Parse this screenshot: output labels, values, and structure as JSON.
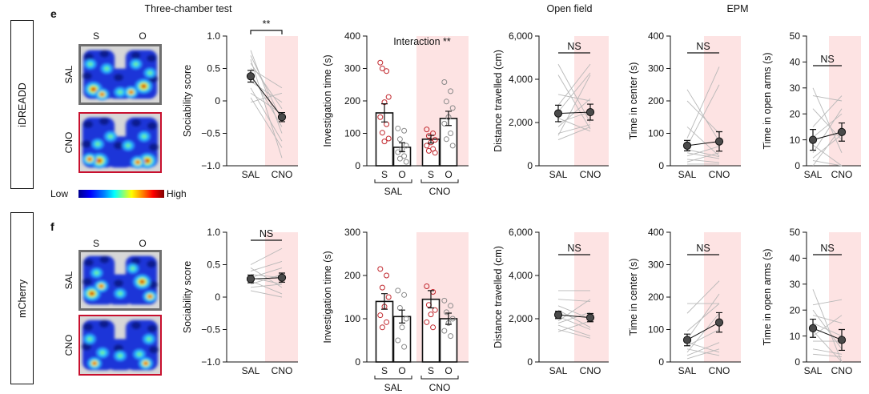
{
  "figure": {
    "section_titles": {
      "three_chamber": "Three-chamber test",
      "open_field": "Open field",
      "epm": "EPM"
    },
    "panels": {
      "e": "e",
      "f": "f"
    },
    "rows": {
      "top": "iDREADD",
      "bottom": "mCherry"
    },
    "heatmaps": {
      "top": {
        "s_label": "S",
        "o_label": "O",
        "sal_label": "SAL",
        "cno_label": "CNO"
      },
      "bottom": {
        "s_label": "S",
        "o_label": "O",
        "sal_label": "SAL",
        "cno_label": "CNO"
      }
    },
    "colorbar": {
      "low": "Low",
      "high": "High"
    }
  },
  "colors": {
    "cno_shade": "#fde3e3",
    "subject_line": "#b8b8b8",
    "mean_point": "#4a4a4a",
    "s_point": "#c1272d",
    "o_point": "#8a8a8a",
    "sal_border": "#6f6f6f",
    "cno_border": "#c8102e"
  },
  "chart_data": [
    {
      "type": "line",
      "ylabel": "Sociability score",
      "ylim": [
        -1,
        1
      ],
      "yticks": [
        -1,
        -0.5,
        0,
        0.5,
        1
      ],
      "ytick_labels": [
        "−1.0",
        "−0.5",
        "0",
        "0.5",
        "1.0"
      ],
      "categories": [
        "SAL",
        "CNO"
      ],
      "shaded_index": 1,
      "mean": [
        0.38,
        -0.25
      ],
      "sem": [
        0.09,
        0.07
      ],
      "subjects": [
        [
          0.78,
          -0.5
        ],
        [
          0.7,
          -0.3
        ],
        [
          0.64,
          -0.88
        ],
        [
          0.58,
          -0.12
        ],
        [
          0.5,
          0.2
        ],
        [
          0.42,
          -0.4
        ],
        [
          0.3,
          -0.02
        ],
        [
          0.2,
          -0.62
        ],
        [
          0.12,
          -0.2
        ],
        [
          -0.02,
          0.12
        ],
        [
          0.05,
          -0.72
        ]
      ],
      "significance": "**"
    },
    {
      "type": "bar",
      "ylabel": "Investigation time (s)",
      "ylim": [
        0,
        400
      ],
      "yticks": [
        0,
        100,
        200,
        300,
        400
      ],
      "ytick_labels": [
        "0",
        "100",
        "200",
        "300",
        "400"
      ],
      "groups": [
        "SAL",
        "CNO"
      ],
      "categories": [
        "S",
        "O",
        "S",
        "O"
      ],
      "shaded_group_index": 1,
      "values": [
        163,
        57,
        82,
        146
      ],
      "sem": [
        28,
        14,
        12,
        22
      ],
      "points": [
        [
          318,
          292,
          300,
          212,
          196,
          150,
          128,
          102,
          84,
          75
        ],
        [
          115,
          108,
          82,
          62,
          52,
          42,
          30,
          22,
          12
        ],
        [
          112,
          100,
          92,
          80,
          72,
          62,
          52,
          46,
          40
        ],
        [
          258,
          230,
          198,
          178,
          150,
          130,
          100,
          82,
          62
        ]
      ],
      "annotation": "Interaction **"
    },
    {
      "type": "line",
      "ylabel": "Distance travelled (cm)",
      "ylim": [
        0,
        6000
      ],
      "yticks": [
        0,
        2000,
        4000,
        6000
      ],
      "ytick_labels": [
        "0",
        "2,000",
        "4,000",
        "6,000"
      ],
      "categories": [
        "SAL",
        "CNO"
      ],
      "shaded_index": 1,
      "mean": [
        2420,
        2480
      ],
      "sem": [
        380,
        370
      ],
      "subjects": [
        [
          4700,
          2000
        ],
        [
          4200,
          1700
        ],
        [
          3300,
          3000
        ],
        [
          2800,
          4700
        ],
        [
          2500,
          4300
        ],
        [
          2200,
          1600
        ],
        [
          2000,
          2500
        ],
        [
          1800,
          3100
        ],
        [
          1500,
          1900
        ],
        [
          1200,
          1800
        ],
        [
          1400,
          4200
        ]
      ],
      "significance": "NS"
    },
    {
      "type": "line",
      "ylabel": "Time in center (s)",
      "ylim": [
        0,
        400
      ],
      "yticks": [
        0,
        100,
        200,
        300,
        400
      ],
      "ytick_labels": [
        "0",
        "100",
        "200",
        "300",
        "400"
      ],
      "categories": [
        "SAL",
        "CNO"
      ],
      "shaded_index": 1,
      "mean": [
        62,
        75
      ],
      "sem": [
        16,
        30
      ],
      "subjects": [
        [
          235,
          75
        ],
        [
          200,
          100
        ],
        [
          120,
          30
        ],
        [
          85,
          305
        ],
        [
          60,
          250
        ],
        [
          50,
          28
        ],
        [
          40,
          22
        ],
        [
          30,
          60
        ],
        [
          20,
          10
        ],
        [
          12,
          40
        ],
        [
          5,
          5
        ]
      ],
      "significance": "NS"
    },
    {
      "type": "line",
      "ylabel": "Time in open arms (s)",
      "ylim": [
        0,
        50
      ],
      "yticks": [
        0,
        10,
        20,
        30,
        40,
        50
      ],
      "ytick_labels": [
        "0",
        "10",
        "20",
        "30",
        "40",
        "50"
      ],
      "categories": [
        "SAL",
        "CNO"
      ],
      "shaded_index": 1,
      "mean": [
        10,
        13
      ],
      "sem": [
        4,
        3.5
      ],
      "subjects": [
        [
          30,
          5
        ],
        [
          27,
          25
        ],
        [
          22,
          10
        ],
        [
          15,
          27
        ],
        [
          11,
          20
        ],
        [
          8,
          0
        ],
        [
          5,
          22
        ],
        [
          3,
          12
        ],
        [
          2,
          0
        ],
        [
          0,
          15
        ]
      ],
      "significance": "NS"
    },
    {
      "type": "line",
      "ylabel": "Sociability score",
      "ylim": [
        -1,
        1
      ],
      "yticks": [
        -1,
        -0.5,
        0,
        0.5,
        1
      ],
      "ytick_labels": [
        "−1.0",
        "−0.5",
        "0",
        "0.5",
        "1.0"
      ],
      "categories": [
        "SAL",
        "CNO"
      ],
      "shaded_index": 1,
      "mean": [
        0.28,
        0.3
      ],
      "sem": [
        0.06,
        0.07
      ],
      "subjects": [
        [
          0.5,
          0.75
        ],
        [
          0.45,
          0.15
        ],
        [
          0.4,
          0.55
        ],
        [
          0.35,
          0.3
        ],
        [
          0.3,
          0.45
        ],
        [
          0.25,
          0.05
        ],
        [
          0.2,
          0.35
        ],
        [
          0.15,
          0.2
        ],
        [
          0.1,
          0.0
        ],
        [
          0.3,
          0.2
        ]
      ],
      "significance": "NS"
    },
    {
      "type": "bar",
      "ylabel": "Investigation time (s)",
      "ylim": [
        0,
        300
      ],
      "yticks": [
        0,
        100,
        200,
        300
      ],
      "ytick_labels": [
        "0",
        "100",
        "200",
        "300"
      ],
      "groups": [
        "SAL",
        "CNO"
      ],
      "categories": [
        "S",
        "O",
        "S",
        "O"
      ],
      "shaded_group_index": 1,
      "values": [
        140,
        105,
        145,
        100
      ],
      "sem": [
        18,
        15,
        20,
        13
      ],
      "points": [
        [
          215,
          200,
          172,
          150,
          128,
          108,
          92,
          80
        ],
        [
          165,
          155,
          125,
          100,
          80,
          50,
          35
        ],
        [
          175,
          162,
          132,
          120,
          110,
          92,
          80
        ],
        [
          142,
          130,
          115,
          100,
          90,
          72,
          60
        ]
      ]
    },
    {
      "type": "line",
      "ylabel": "Distance travelled (cm)",
      "ylim": [
        0,
        6000
      ],
      "yticks": [
        0,
        2000,
        4000,
        6000
      ],
      "ytick_labels": [
        "0",
        "2,000",
        "4,000",
        "6,000"
      ],
      "categories": [
        "SAL",
        "CNO"
      ],
      "shaded_index": 1,
      "mean": [
        2180,
        2050
      ],
      "sem": [
        170,
        190
      ],
      "subjects": [
        [
          3300,
          3300
        ],
        [
          2900,
          2800
        ],
        [
          2600,
          2000
        ],
        [
          2400,
          1600
        ],
        [
          2100,
          1500
        ],
        [
          1900,
          2900
        ],
        [
          1700,
          1200
        ],
        [
          1500,
          1100
        ],
        [
          1400,
          1900
        ],
        [
          1800,
          2300
        ]
      ],
      "significance": "NS"
    },
    {
      "type": "line",
      "ylabel": "Time in center (s)",
      "ylim": [
        0,
        400
      ],
      "yticks": [
        0,
        100,
        200,
        300,
        400
      ],
      "ytick_labels": [
        "0",
        "100",
        "200",
        "300",
        "400"
      ],
      "categories": [
        "SAL",
        "CNO"
      ],
      "shaded_index": 1,
      "mean": [
        68,
        122
      ],
      "sem": [
        18,
        30
      ],
      "subjects": [
        [
          180,
          180
        ],
        [
          150,
          250
        ],
        [
          95,
          180
        ],
        [
          70,
          210
        ],
        [
          60,
          30
        ],
        [
          50,
          100
        ],
        [
          40,
          20
        ],
        [
          30,
          150
        ],
        [
          20,
          60
        ],
        [
          10,
          40
        ]
      ],
      "significance": "NS"
    },
    {
      "type": "line",
      "ylabel": "Time in open arms (s)",
      "ylim": [
        0,
        50
      ],
      "yticks": [
        0,
        10,
        20,
        30,
        40,
        50
      ],
      "ytick_labels": [
        "0",
        "10",
        "20",
        "30",
        "40",
        "50"
      ],
      "categories": [
        "SAL",
        "CNO"
      ],
      "shaded_index": 1,
      "mean": [
        13,
        8.5
      ],
      "sem": [
        3.5,
        4
      ],
      "subjects": [
        [
          28,
          0
        ],
        [
          22,
          24
        ],
        [
          20,
          5
        ],
        [
          18,
          15
        ],
        [
          15,
          10
        ],
        [
          12,
          0
        ],
        [
          10,
          18
        ],
        [
          8,
          8
        ],
        [
          5,
          3
        ],
        [
          3,
          2
        ]
      ],
      "significance": "NS"
    }
  ]
}
